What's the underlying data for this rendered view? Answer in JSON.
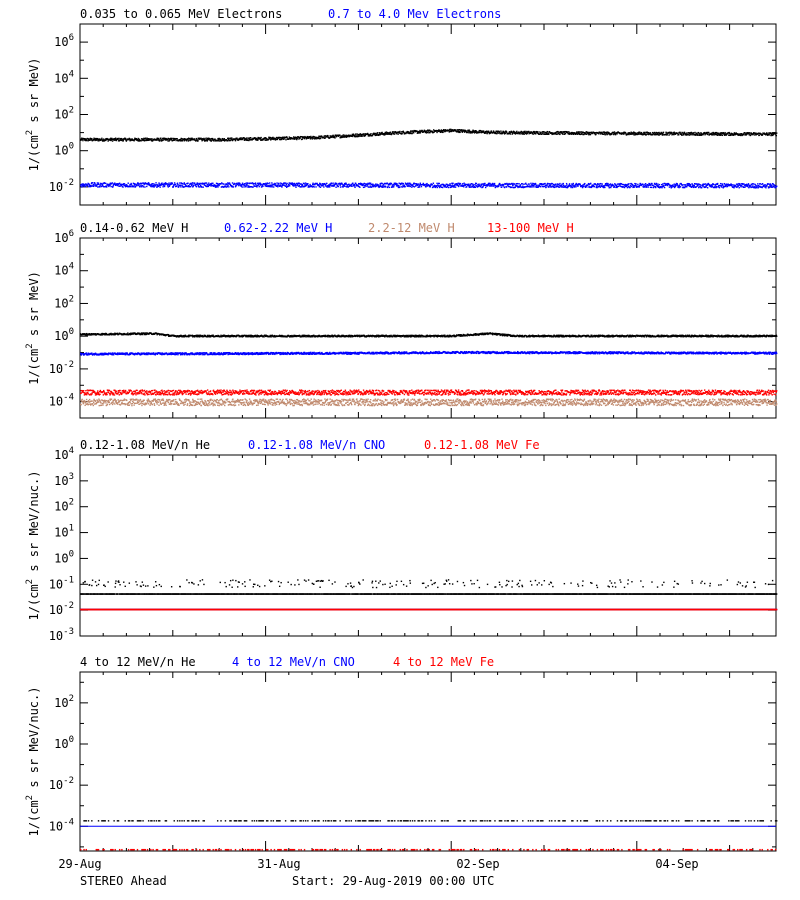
{
  "colors": {
    "black": "#000000",
    "blue": "#0000ff",
    "tan": "#c08a6e",
    "red": "#ff0000"
  },
  "x_ticks": [
    "29-Aug",
    "31-Aug",
    "02-Sep",
    "04-Sep"
  ],
  "footer": {
    "left": "STEREO Ahead",
    "center": "Start: 29-Aug-2019 00:00 UTC"
  },
  "chart_data": [
    {
      "type": "scatter",
      "title": "",
      "yscale": "log",
      "ylim_exp": [
        -3,
        7
      ],
      "ylabel_main": "1/(cm",
      "ylabel_sup": "2",
      "ylabel_rest": " s sr MeV)",
      "yticks": [
        {
          "base": "10",
          "exp": "6"
        },
        {
          "base": "10",
          "exp": "4"
        },
        {
          "base": "10",
          "exp": "2"
        },
        {
          "base": "10",
          "exp": "0"
        },
        {
          "base": "10",
          "exp": "-2"
        }
      ],
      "ytick_exps": [
        6,
        4,
        2,
        0,
        -2
      ],
      "xlim_days": [
        0,
        7.5
      ],
      "legend": [
        {
          "label": "0.035 to 0.065 MeV Electrons",
          "color": "black"
        },
        {
          "label": "0.7 to 4.0 Mev Electrons",
          "color": "blue"
        }
      ],
      "series": [
        {
          "name": "0.035 to 0.065 MeV Electrons",
          "color": "black",
          "base_exp": 0.65,
          "noise": 0.08,
          "profile": [
            [
              0,
              0.65
            ],
            [
              1.5,
              0.65
            ],
            [
              2.5,
              0.75
            ],
            [
              3.5,
              1.05
            ],
            [
              4.0,
              1.15
            ],
            [
              4.4,
              1.05
            ],
            [
              5.5,
              1.0
            ],
            [
              7.5,
              0.95
            ]
          ]
        },
        {
          "name": "0.7 to 4.0 Mev Electrons",
          "color": "blue",
          "base_exp": -1.9,
          "noise": 0.12,
          "profile": [
            [
              0,
              -1.85
            ],
            [
              7.5,
              -1.9
            ]
          ]
        }
      ]
    },
    {
      "type": "scatter",
      "title": "",
      "yscale": "log",
      "ylim_exp": [
        -5,
        6
      ],
      "ylabel_main": "1/(cm",
      "ylabel_sup": "2",
      "ylabel_rest": " s sr MeV)",
      "yticks": [
        {
          "base": "10",
          "exp": "6"
        },
        {
          "base": "10",
          "exp": "4"
        },
        {
          "base": "10",
          "exp": "2"
        },
        {
          "base": "10",
          "exp": "0"
        },
        {
          "base": "10",
          "exp": "-2"
        },
        {
          "base": "10",
          "exp": "-4"
        }
      ],
      "ytick_exps": [
        6,
        4,
        2,
        0,
        -2,
        -4
      ],
      "xlim_days": [
        0,
        7.5
      ],
      "legend": [
        {
          "label": "0.14-0.62 MeV H",
          "color": "black"
        },
        {
          "label": "0.62-2.22 MeV H",
          "color": "blue"
        },
        {
          "label": "2.2-12 MeV H",
          "color": "tan"
        },
        {
          "label": "13-100 MeV H",
          "color": "red"
        }
      ],
      "series": [
        {
          "name": "0.14-0.62 MeV H",
          "color": "black",
          "base_exp": 0.1,
          "noise": 0.05,
          "profile": [
            [
              0,
              0.15
            ],
            [
              0.8,
              0.2
            ],
            [
              1.0,
              0.05
            ],
            [
              4.0,
              0.05
            ],
            [
              4.4,
              0.2
            ],
            [
              4.7,
              0.05
            ],
            [
              7.5,
              0.05
            ]
          ]
        },
        {
          "name": "0.62-2.22 MeV H",
          "color": "blue",
          "base_exp": -1.0,
          "noise": 0.06,
          "profile": [
            [
              0,
              -1.05
            ],
            [
              3.0,
              -1.0
            ],
            [
              4.0,
              -0.95
            ],
            [
              7.5,
              -1.0
            ]
          ]
        },
        {
          "name": "2.2-12 MeV H",
          "color": "tan",
          "base_exp": -4.0,
          "noise": 0.2,
          "profile": [
            [
              0,
              -4.0
            ],
            [
              7.5,
              -4.0
            ]
          ]
        },
        {
          "name": "13-100 MeV H",
          "color": "red",
          "base_exp": -3.4,
          "noise": 0.15,
          "profile": [
            [
              0,
              -3.4
            ],
            [
              7.5,
              -3.4
            ]
          ]
        }
      ]
    },
    {
      "type": "scatter",
      "title": "",
      "yscale": "log",
      "ylim_exp": [
        -3,
        4
      ],
      "ylabel_main": "1/(cm",
      "ylabel_sup": "2",
      "ylabel_rest": " s sr MeV/nuc.)",
      "yticks": [
        {
          "base": "10",
          "exp": "4"
        },
        {
          "base": "10",
          "exp": "3"
        },
        {
          "base": "10",
          "exp": "2"
        },
        {
          "base": "10",
          "exp": "1"
        },
        {
          "base": "10",
          "exp": "0"
        },
        {
          "base": "10",
          "exp": "-1"
        },
        {
          "base": "10",
          "exp": "-2"
        },
        {
          "base": "10",
          "exp": "-3"
        }
      ],
      "ytick_exps": [
        4,
        3,
        2,
        1,
        0,
        -1,
        -2,
        -3
      ],
      "xlim_days": [
        0,
        7.5
      ],
      "legend": [
        {
          "label": "0.12-1.08 MeV/n He",
          "color": "black"
        },
        {
          "label": "0.12-1.08 MeV/n CNO",
          "color": "blue"
        },
        {
          "label": "0.12-1.08 MeV Fe",
          "color": "red"
        }
      ],
      "series": [
        {
          "name": "0.12-1.08 MeV/n He",
          "color": "black",
          "base_exp": -1.35,
          "noise": 0.0,
          "sparse_upper_exp": -0.95,
          "profile": [
            [
              0,
              -1.35
            ],
            [
              7.5,
              -1.35
            ]
          ]
        },
        {
          "name": "0.12-1.08 MeV/n CNO",
          "color": "blue",
          "base_exp": -1.95,
          "noise": 0.0,
          "profile": [
            [
              0,
              -1.95
            ],
            [
              7.5,
              -1.95
            ]
          ]
        },
        {
          "name": "0.12-1.08 MeV Fe",
          "color": "red",
          "base_exp": -1.95,
          "noise": 0.0,
          "profile": [
            [
              0,
              -1.95
            ],
            [
              7.5,
              -1.95
            ]
          ]
        }
      ]
    },
    {
      "type": "scatter",
      "title": "",
      "yscale": "log",
      "ylim_exp": [
        -5.2,
        3.5
      ],
      "ylabel_main": "1/(cm",
      "ylabel_sup": "2",
      "ylabel_rest": " s sr MeV/nuc.)",
      "yticks": [
        {
          "base": "10",
          "exp": "2"
        },
        {
          "base": "10",
          "exp": "0"
        },
        {
          "base": "10",
          "exp": "-2"
        },
        {
          "base": "10",
          "exp": "-4"
        }
      ],
      "ytick_exps": [
        2,
        0,
        -2,
        -4
      ],
      "xlim_days": [
        0,
        7.5
      ],
      "legend": [
        {
          "label": "4 to 12 MeV/n He",
          "color": "black"
        },
        {
          "label": "4 to 12 MeV/n CNO",
          "color": "blue"
        },
        {
          "label": "4 to 12 MeV Fe",
          "color": "red"
        }
      ],
      "series": [
        {
          "name": "4 to 12 MeV/n He",
          "color": "black",
          "base_exp": -3.7,
          "noise": 0.0,
          "sparse": true,
          "profile": [
            [
              0,
              -3.7
            ],
            [
              7.5,
              -3.7
            ]
          ]
        },
        {
          "name": "4 to 12 MeV/n CNO",
          "color": "blue",
          "base_exp": -4.0,
          "noise": 0.0,
          "line": true,
          "profile": [
            [
              0,
              -4.0
            ],
            [
              7.5,
              -4.0
            ]
          ]
        },
        {
          "name": "4 to 12 MeV Fe",
          "color": "red",
          "base_exp": -5.1,
          "noise": 0.0,
          "sparse": true,
          "profile": [
            [
              0,
              -5.1
            ],
            [
              7.5,
              -5.1
            ]
          ]
        }
      ]
    }
  ]
}
